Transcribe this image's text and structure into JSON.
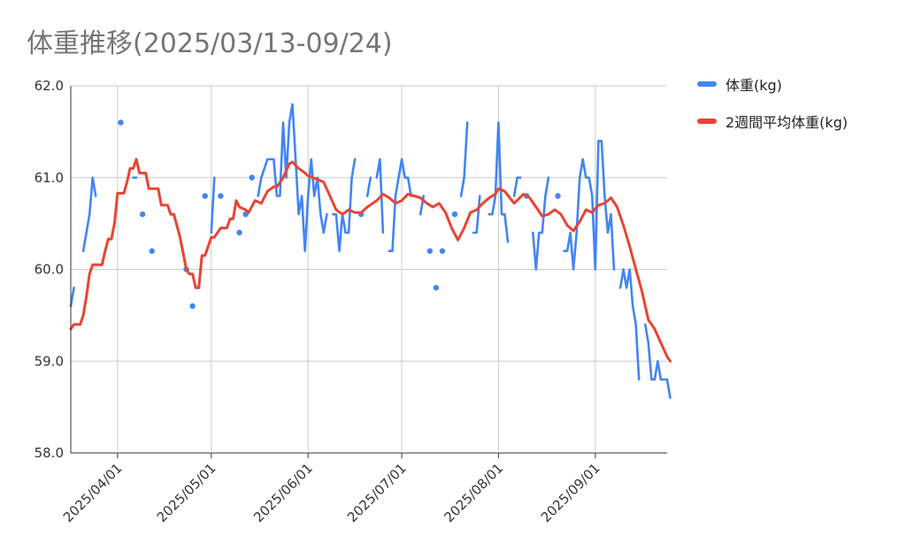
{
  "colors": {
    "weight": "#4285f4",
    "average": "#ea4335",
    "grid": "#cccccc",
    "title": "#757575"
  },
  "chart_data": {
    "type": "line",
    "title": "体重推移(2025/03/13-09/24)",
    "xlabel": "",
    "ylabel": "",
    "x_range": [
      "2025-03-17",
      "2025-09-24"
    ],
    "ylim": [
      58.0,
      62.0
    ],
    "y_ticks": [
      "58.0",
      "59.0",
      "60.0",
      "61.0",
      "62.0"
    ],
    "x_ticks": [
      {
        "date": "2025-04-01",
        "label": "2025/04/01"
      },
      {
        "date": "2025-05-01",
        "label": "2025/05/01"
      },
      {
        "date": "2025-06-01",
        "label": "2025/06/01"
      },
      {
        "date": "2025-07-01",
        "label": "2025/07/01"
      },
      {
        "date": "2025-08-01",
        "label": "2025/08/01"
      },
      {
        "date": "2025-09-01",
        "label": "2025/09/01"
      }
    ],
    "grid": true,
    "legend_position": "right",
    "series": [
      {
        "name": "体重(kg)",
        "color": "#4285f4",
        "style": "line-with-gaps",
        "points": [
          [
            "2025-03-17",
            59.6
          ],
          [
            "2025-03-18",
            59.8
          ],
          null,
          [
            "2025-03-21",
            60.2
          ],
          [
            "2025-03-23",
            60.6
          ],
          [
            "2025-03-24",
            61.0
          ],
          [
            "2025-03-25",
            60.8
          ],
          null,
          [
            "2025-04-02",
            61.6
          ],
          null,
          [
            "2025-04-06",
            61.0
          ],
          [
            "2025-04-07",
            61.0
          ],
          null,
          [
            "2025-04-09",
            60.6
          ],
          null,
          [
            "2025-04-12",
            60.2
          ],
          null,
          [
            "2025-04-23",
            60.0
          ],
          null,
          [
            "2025-04-25",
            59.6
          ],
          null,
          [
            "2025-04-29",
            60.8
          ],
          null,
          [
            "2025-05-01",
            60.4
          ],
          [
            "2025-05-02",
            61.0
          ],
          null,
          [
            "2025-05-04",
            60.8
          ],
          null,
          [
            "2025-05-10",
            60.4
          ],
          null,
          [
            "2025-05-12",
            60.6
          ],
          null,
          [
            "2025-05-14",
            61.0
          ],
          null,
          [
            "2025-05-16",
            60.8
          ],
          [
            "2025-05-17",
            61.0
          ],
          [
            "2025-05-19",
            61.2
          ],
          [
            "2025-05-21",
            61.2
          ],
          [
            "2025-05-22",
            60.8
          ],
          [
            "2025-05-23",
            60.8
          ],
          [
            "2025-05-24",
            61.6
          ],
          [
            "2025-05-25",
            61.0
          ],
          [
            "2025-05-26",
            61.6
          ],
          [
            "2025-05-27",
            61.8
          ],
          [
            "2025-05-28",
            61.2
          ],
          [
            "2025-05-29",
            60.6
          ],
          [
            "2025-05-30",
            60.8
          ],
          [
            "2025-05-31",
            60.2
          ],
          [
            "2025-06-01",
            60.8
          ],
          [
            "2025-06-02",
            61.2
          ],
          [
            "2025-06-03",
            60.8
          ],
          [
            "2025-06-04",
            61.0
          ],
          [
            "2025-06-05",
            60.6
          ],
          [
            "2025-06-06",
            60.4
          ],
          [
            "2025-06-07",
            60.6
          ],
          null,
          [
            "2025-06-09",
            60.6
          ],
          [
            "2025-06-10",
            60.6
          ],
          [
            "2025-06-11",
            60.2
          ],
          [
            "2025-06-12",
            60.6
          ],
          [
            "2025-06-13",
            60.4
          ],
          [
            "2025-06-14",
            60.4
          ],
          [
            "2025-06-15",
            61.0
          ],
          [
            "2025-06-16",
            61.2
          ],
          null,
          [
            "2025-06-18",
            60.6
          ],
          null,
          [
            "2025-06-20",
            60.8
          ],
          [
            "2025-06-21",
            61.0
          ],
          null,
          [
            "2025-06-23",
            61.0
          ],
          [
            "2025-06-24",
            61.2
          ],
          [
            "2025-06-25",
            60.4
          ],
          null,
          [
            "2025-06-27",
            60.2
          ],
          [
            "2025-06-28",
            60.2
          ],
          [
            "2025-06-29",
            60.8
          ],
          [
            "2025-06-30",
            61.0
          ],
          [
            "2025-07-01",
            61.2
          ],
          [
            "2025-07-02",
            61.0
          ],
          [
            "2025-07-03",
            61.0
          ],
          [
            "2025-07-04",
            60.8
          ],
          [
            "2025-07-05",
            60.8
          ],
          null,
          [
            "2025-07-07",
            60.6
          ],
          [
            "2025-07-08",
            60.8
          ],
          null,
          [
            "2025-07-10",
            60.2
          ],
          null,
          [
            "2025-07-12",
            59.8
          ],
          null,
          [
            "2025-07-14",
            60.2
          ],
          null,
          [
            "2025-07-18",
            60.6
          ],
          null,
          [
            "2025-07-20",
            60.8
          ],
          [
            "2025-07-21",
            61.0
          ],
          [
            "2025-07-22",
            61.6
          ],
          null,
          [
            "2025-07-24",
            60.4
          ],
          [
            "2025-07-25",
            60.4
          ],
          [
            "2025-07-26",
            60.8
          ],
          null,
          [
            "2025-07-29",
            60.6
          ],
          [
            "2025-07-30",
            60.6
          ],
          [
            "2025-07-31",
            60.8
          ],
          [
            "2025-08-01",
            61.6
          ],
          [
            "2025-08-02",
            60.6
          ],
          [
            "2025-08-03",
            60.6
          ],
          [
            "2025-08-04",
            60.3
          ],
          null,
          [
            "2025-08-06",
            60.8
          ],
          [
            "2025-08-07",
            61.0
          ],
          [
            "2025-08-08",
            61.0
          ],
          null,
          [
            "2025-08-10",
            60.8
          ],
          null,
          [
            "2025-08-12",
            60.4
          ],
          [
            "2025-08-13",
            60.0
          ],
          [
            "2025-08-14",
            60.4
          ],
          [
            "2025-08-15",
            60.4
          ],
          [
            "2025-08-16",
            60.8
          ],
          [
            "2025-08-17",
            61.0
          ],
          null,
          [
            "2025-08-20",
            60.8
          ],
          null,
          [
            "2025-08-22",
            60.2
          ],
          [
            "2025-08-23",
            60.2
          ],
          [
            "2025-08-24",
            60.4
          ],
          [
            "2025-08-25",
            60.0
          ],
          [
            "2025-08-26",
            60.4
          ],
          [
            "2025-08-27",
            61.0
          ],
          [
            "2025-08-28",
            61.2
          ],
          [
            "2025-08-29",
            61.0
          ],
          [
            "2025-08-30",
            61.0
          ],
          [
            "2025-08-31",
            60.8
          ],
          [
            "2025-09-01",
            60.0
          ],
          [
            "2025-09-02",
            61.4
          ],
          [
            "2025-09-03",
            61.4
          ],
          [
            "2025-09-04",
            60.8
          ],
          [
            "2025-09-05",
            60.4
          ],
          [
            "2025-09-06",
            60.6
          ],
          [
            "2025-09-07",
            60.0
          ],
          null,
          [
            "2025-09-09",
            59.8
          ],
          [
            "2025-09-10",
            60.0
          ],
          [
            "2025-09-11",
            59.8
          ],
          [
            "2025-09-12",
            60.0
          ],
          [
            "2025-09-13",
            59.6
          ],
          [
            "2025-09-14",
            59.4
          ],
          [
            "2025-09-15",
            58.8
          ],
          null,
          [
            "2025-09-17",
            59.4
          ],
          [
            "2025-09-18",
            59.2
          ],
          [
            "2025-09-19",
            58.8
          ],
          [
            "2025-09-20",
            58.8
          ],
          [
            "2025-09-21",
            59.0
          ],
          [
            "2025-09-22",
            58.8
          ],
          [
            "2025-09-23",
            58.8
          ],
          [
            "2025-09-24",
            58.8
          ],
          [
            "2025-09-25",
            58.6
          ]
        ]
      },
      {
        "name": "2週間平均体重(kg)",
        "color": "#ea4335",
        "style": "line",
        "points": [
          [
            "2025-03-17",
            59.35
          ],
          [
            "2025-03-18",
            59.4
          ],
          [
            "2025-03-20",
            59.4
          ],
          [
            "2025-03-21",
            59.5
          ],
          [
            "2025-03-22",
            59.7
          ],
          [
            "2025-03-23",
            59.95
          ],
          [
            "2025-03-24",
            60.05
          ],
          [
            "2025-03-27",
            60.05
          ],
          [
            "2025-03-28",
            60.2
          ],
          [
            "2025-03-29",
            60.33
          ],
          [
            "2025-03-30",
            60.33
          ],
          [
            "2025-03-31",
            60.5
          ],
          [
            "2025-04-01",
            60.83
          ],
          [
            "2025-04-03",
            60.83
          ],
          [
            "2025-04-04",
            60.95
          ],
          [
            "2025-04-05",
            61.1
          ],
          [
            "2025-04-06",
            61.1
          ],
          [
            "2025-04-07",
            61.2
          ],
          [
            "2025-04-08",
            61.05
          ],
          [
            "2025-04-10",
            61.05
          ],
          [
            "2025-04-11",
            60.88
          ],
          [
            "2025-04-14",
            60.88
          ],
          [
            "2025-04-15",
            60.7
          ],
          [
            "2025-04-17",
            60.7
          ],
          [
            "2025-04-18",
            60.6
          ],
          [
            "2025-04-19",
            60.6
          ],
          [
            "2025-04-21",
            60.35
          ],
          [
            "2025-04-23",
            60.0
          ],
          [
            "2025-04-24",
            59.95
          ],
          [
            "2025-04-25",
            59.95
          ],
          [
            "2025-04-26",
            59.8
          ],
          [
            "2025-04-27",
            59.8
          ],
          [
            "2025-04-28",
            60.15
          ],
          [
            "2025-04-29",
            60.15
          ],
          [
            "2025-05-01",
            60.35
          ],
          [
            "2025-05-02",
            60.35
          ],
          [
            "2025-05-04",
            60.45
          ],
          [
            "2025-05-06",
            60.45
          ],
          [
            "2025-05-07",
            60.55
          ],
          [
            "2025-05-08",
            60.55
          ],
          [
            "2025-05-09",
            60.75
          ],
          [
            "2025-05-10",
            60.68
          ],
          [
            "2025-05-12",
            60.65
          ],
          [
            "2025-05-13",
            60.62
          ],
          [
            "2025-05-15",
            60.75
          ],
          [
            "2025-05-17",
            60.72
          ],
          [
            "2025-05-19",
            60.85
          ],
          [
            "2025-05-21",
            60.9
          ],
          [
            "2025-05-22",
            60.9
          ],
          [
            "2025-05-24",
            61.0
          ],
          [
            "2025-05-26",
            61.15
          ],
          [
            "2025-05-27",
            61.17
          ],
          [
            "2025-05-29",
            61.1
          ],
          [
            "2025-05-31",
            61.05
          ],
          [
            "2025-06-01",
            61.02
          ],
          [
            "2025-06-04",
            60.98
          ],
          [
            "2025-06-06",
            60.95
          ],
          [
            "2025-06-08",
            60.8
          ],
          [
            "2025-06-10",
            60.65
          ],
          [
            "2025-06-12",
            60.6
          ],
          [
            "2025-06-14",
            60.65
          ],
          [
            "2025-06-16",
            60.62
          ],
          [
            "2025-06-18",
            60.62
          ],
          [
            "2025-06-20",
            60.68
          ],
          [
            "2025-06-23",
            60.75
          ],
          [
            "2025-06-25",
            60.82
          ],
          [
            "2025-06-27",
            60.78
          ],
          [
            "2025-06-29",
            60.72
          ],
          [
            "2025-07-01",
            60.75
          ],
          [
            "2025-07-03",
            60.82
          ],
          [
            "2025-07-05",
            60.8
          ],
          [
            "2025-07-07",
            60.78
          ],
          [
            "2025-07-09",
            60.72
          ],
          [
            "2025-07-11",
            60.68
          ],
          [
            "2025-07-13",
            60.72
          ],
          [
            "2025-07-15",
            60.62
          ],
          [
            "2025-07-17",
            60.45
          ],
          [
            "2025-07-19",
            60.32
          ],
          [
            "2025-07-21",
            60.45
          ],
          [
            "2025-07-23",
            60.62
          ],
          [
            "2025-07-25",
            60.65
          ],
          [
            "2025-07-27",
            60.72
          ],
          [
            "2025-07-29",
            60.78
          ],
          [
            "2025-07-31",
            60.82
          ],
          [
            "2025-08-01",
            60.88
          ],
          [
            "2025-08-03",
            60.85
          ],
          [
            "2025-08-06",
            60.72
          ],
          [
            "2025-08-09",
            60.82
          ],
          [
            "2025-08-11",
            60.78
          ],
          [
            "2025-08-13",
            60.68
          ],
          [
            "2025-08-15",
            60.58
          ],
          [
            "2025-08-17",
            60.6
          ],
          [
            "2025-08-19",
            60.65
          ],
          [
            "2025-08-21",
            60.6
          ],
          [
            "2025-08-23",
            60.48
          ],
          [
            "2025-08-25",
            60.42
          ],
          [
            "2025-08-27",
            60.52
          ],
          [
            "2025-08-29",
            60.65
          ],
          [
            "2025-08-31",
            60.62
          ],
          [
            "2025-09-02",
            60.7
          ],
          [
            "2025-09-04",
            60.72
          ],
          [
            "2025-09-06",
            60.78
          ],
          [
            "2025-09-08",
            60.68
          ],
          [
            "2025-09-10",
            60.48
          ],
          [
            "2025-09-12",
            60.25
          ],
          [
            "2025-09-14",
            60.0
          ],
          [
            "2025-09-16",
            59.75
          ],
          [
            "2025-09-18",
            59.45
          ],
          [
            "2025-09-20",
            59.35
          ],
          [
            "2025-09-22",
            59.2
          ],
          [
            "2025-09-24",
            59.05
          ],
          [
            "2025-09-25",
            59.0
          ]
        ]
      }
    ]
  }
}
